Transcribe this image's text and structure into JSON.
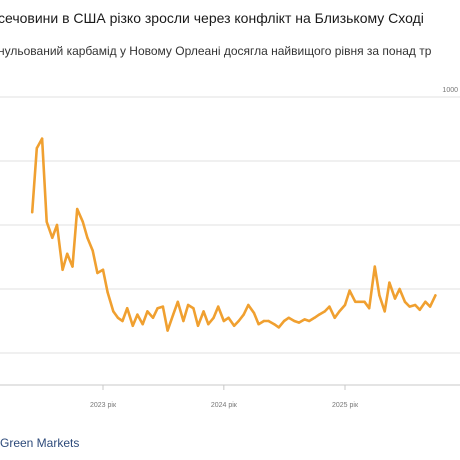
{
  "chart_data": {
    "type": "line",
    "title": "сечовини в США різко зросли через конфлікт на Близькому Сході",
    "subtitle": "нульований карбамід у Новому Орлеані досягла найвищого рівня за понад тр",
    "ylabel": "",
    "xlabel": "",
    "y_tick_labels": [
      "1000"
    ],
    "x_ticks": [
      "2023 рік",
      "2024 рік",
      "2025 рік"
    ],
    "ylim": [
      100,
      1000
    ],
    "grid": "horizontal",
    "color": "#f0a030",
    "series": [
      {
        "x": [
          "2022-06-01",
          "2022-06-15",
          "2022-07-01",
          "2022-07-15",
          "2022-08-01",
          "2022-08-15",
          "2022-09-01",
          "2022-09-15",
          "2022-10-01",
          "2022-10-15",
          "2022-11-01",
          "2022-11-15",
          "2022-12-01",
          "2022-12-15",
          "2023-01-01",
          "2023-01-15",
          "2023-02-01",
          "2023-02-15",
          "2023-03-01",
          "2023-03-15",
          "2023-04-01",
          "2023-04-15",
          "2023-05-01",
          "2023-05-15",
          "2023-06-01",
          "2023-06-15",
          "2023-07-01",
          "2023-07-15",
          "2023-08-01",
          "2023-08-15",
          "2023-09-01",
          "2023-09-15",
          "2023-10-01",
          "2023-10-15",
          "2023-11-01",
          "2023-11-15",
          "2023-12-01",
          "2023-12-15",
          "2024-01-01",
          "2024-01-15",
          "2024-02-01",
          "2024-02-15",
          "2024-03-01",
          "2024-03-15",
          "2024-04-01",
          "2024-04-15",
          "2024-05-01",
          "2024-05-15",
          "2024-06-01",
          "2024-06-15",
          "2024-07-01",
          "2024-07-15",
          "2024-08-01",
          "2024-08-15",
          "2024-09-01",
          "2024-09-15",
          "2024-10-01",
          "2024-10-15",
          "2024-11-01",
          "2024-11-15",
          "2024-12-01",
          "2024-12-15",
          "2025-01-01",
          "2025-01-15",
          "2025-02-01",
          "2025-02-15",
          "2025-03-01",
          "2025-03-15",
          "2025-04-01",
          "2025-04-15",
          "2025-05-01",
          "2025-05-15",
          "2025-06-01",
          "2025-06-15",
          "2025-07-01",
          "2025-07-15",
          "2025-08-01",
          "2025-08-15",
          "2025-09-01",
          "2025-09-15",
          "2025-10-01"
        ],
        "values": [
          640,
          840,
          870,
          610,
          560,
          600,
          460,
          510,
          470,
          650,
          610,
          560,
          520,
          450,
          460,
          390,
          330,
          310,
          300,
          340,
          285,
          320,
          290,
          330,
          310,
          340,
          345,
          270,
          320,
          360,
          300,
          350,
          340,
          285,
          330,
          290,
          310,
          345,
          300,
          310,
          285,
          300,
          320,
          350,
          325,
          290,
          300,
          300,
          290,
          280,
          300,
          310,
          300,
          295,
          305,
          300,
          310,
          320,
          330,
          345,
          310,
          330,
          350,
          395,
          360,
          360,
          360,
          340,
          470,
          380,
          330,
          420,
          370,
          400,
          360,
          345,
          350,
          335,
          360,
          345,
          380
        ]
      }
    ]
  },
  "source": "Green Markets"
}
